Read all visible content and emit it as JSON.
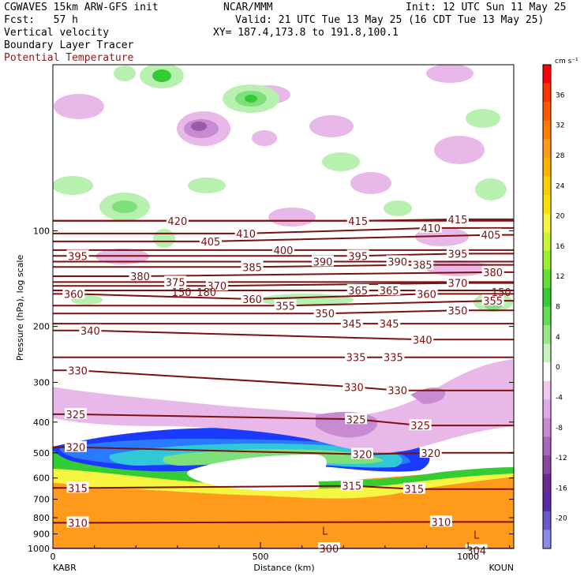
{
  "header": {
    "line1_left": "CGWAVES 15km ARW-GFS init",
    "line1_mid": "NCAR/MMM",
    "line1_right": "Init: 12 UTC Sun 11 May 25",
    "line2_left": "Fcst:   57 h",
    "line2_right": "Valid: 21 UTC Tue 13 May 25 (16 CDT Tue 13 May 25)",
    "line3_left": "Vertical velocity",
    "line3_right": "XY= 187.4,173.8 to 191.8,100.1",
    "line4_left": "Boundary Layer Tracer",
    "line5_left": "Potential Temperature"
  },
  "colors": {
    "theta": "#7a1010",
    "up_light": "#b8f0b0",
    "up_mid": "#7de07a",
    "up_strong": "#33cc33",
    "down_light": "#e8b8e8",
    "down_mid": "#c88ad0",
    "down_strong": "#9a5aa8",
    "tracer_orange": "#ff9a1a",
    "tracer_yellow": "#f5f542",
    "tracer_green": "#33cc33",
    "tracer_cyan": "#30c8d8",
    "tracer_blue": "#2a7aff",
    "tracer_dblue": "#1a3aff"
  },
  "chart_data": {
    "type": "heatmap",
    "xlabel": "Distance (km)",
    "ylabel": "Pressure (hPa), log scale",
    "x_ticks": [
      "0",
      "500",
      "1000"
    ],
    "x_tick_values": [
      0,
      500,
      1000
    ],
    "xlim": [
      0,
      1110
    ],
    "x_endpoints": [
      "KABR",
      "KOUN"
    ],
    "y_ticks": [
      "100",
      "200",
      "300",
      "400",
      "500",
      "600",
      "700",
      "800",
      "900",
      "1000"
    ],
    "y_tick_values": [
      100,
      200,
      300,
      400,
      500,
      600,
      700,
      800,
      900,
      1000
    ],
    "ylim": [
      1000,
      30
    ],
    "y_scale": "log",
    "colorbar": {
      "unit": "cm s⁻¹",
      "ticks": [
        "36",
        "32",
        "28",
        "24",
        "20",
        "16",
        "12",
        "8",
        "4",
        "0",
        "-4",
        "-8",
        "-12",
        "-16",
        "-20"
      ],
      "tick_values": [
        36,
        32,
        28,
        24,
        20,
        16,
        12,
        8,
        4,
        0,
        -4,
        -8,
        -12,
        -16,
        -20
      ],
      "colors": [
        "#ff0000",
        "#ff3300",
        "#ff5a00",
        "#ff7a00",
        "#ff9a1a",
        "#ffb000",
        "#ffcc00",
        "#ffe100",
        "#f5f542",
        "#ccf53a",
        "#99ee33",
        "#66e033",
        "#33cc33",
        "#66dd55",
        "#99e888",
        "#c8f2c0",
        "#ffffff",
        "#f0c8f0",
        "#e0a8e8",
        "#c88ad0",
        "#a868b8",
        "#8a48a0",
        "#6a2a90",
        "#5a2aa8",
        "#6a5ac8",
        "#8a8ae8"
      ]
    },
    "theta_contours": [
      {
        "label": "420",
        "x": 300,
        "p": 93
      },
      {
        "label": "415",
        "x": 735,
        "p": 93
      },
      {
        "label": "415",
        "x": 975,
        "p": 92
      },
      {
        "label": "410",
        "x": 465,
        "p": 102
      },
      {
        "label": "410",
        "x": 910,
        "p": 98
      },
      {
        "label": "405",
        "x": 380,
        "p": 108
      },
      {
        "label": "405",
        "x": 1055,
        "p": 103
      },
      {
        "label": "400",
        "x": 555,
        "p": 115
      },
      {
        "label": "395",
        "x": 60,
        "p": 120
      },
      {
        "label": "395",
        "x": 735,
        "p": 120
      },
      {
        "label": "395",
        "x": 975,
        "p": 118
      },
      {
        "label": "390",
        "x": 650,
        "p": 125
      },
      {
        "label": "390",
        "x": 830,
        "p": 125
      },
      {
        "label": "385",
        "x": 480,
        "p": 130
      },
      {
        "label": "385",
        "x": 890,
        "p": 128
      },
      {
        "label": "380",
        "x": 210,
        "p": 139
      },
      {
        "label": "380",
        "x": 1060,
        "p": 135
      },
      {
        "label": "375",
        "x": 295,
        "p": 145
      },
      {
        "label": "370",
        "x": 395,
        "p": 149
      },
      {
        "label": "370",
        "x": 975,
        "p": 146
      },
      {
        "label": "365",
        "x": 735,
        "p": 154
      },
      {
        "label": "365",
        "x": 810,
        "p": 154
      },
      {
        "label": "360",
        "x": 50,
        "p": 158
      },
      {
        "label": "360",
        "x": 480,
        "p": 164
      },
      {
        "label": "360",
        "x": 900,
        "p": 158
      },
      {
        "label": "355",
        "x": 560,
        "p": 172
      },
      {
        "label": "355",
        "x": 1060,
        "p": 166
      },
      {
        "label": "350",
        "x": 655,
        "p": 182
      },
      {
        "label": "350",
        "x": 975,
        "p": 178
      },
      {
        "label": "345",
        "x": 720,
        "p": 196
      },
      {
        "label": "345",
        "x": 810,
        "p": 196
      },
      {
        "label": "340",
        "x": 90,
        "p": 206
      },
      {
        "label": "340",
        "x": 890,
        "p": 220
      },
      {
        "label": "335",
        "x": 730,
        "p": 250
      },
      {
        "label": "335",
        "x": 820,
        "p": 250
      },
      {
        "label": "330",
        "x": 60,
        "p": 275
      },
      {
        "label": "330",
        "x": 725,
        "p": 310
      },
      {
        "label": "330",
        "x": 830,
        "p": 318
      },
      {
        "label": "325",
        "x": 55,
        "p": 378
      },
      {
        "label": "325",
        "x": 730,
        "p": 392
      },
      {
        "label": "325",
        "x": 885,
        "p": 410
      },
      {
        "label": "320",
        "x": 55,
        "p": 480
      },
      {
        "label": "320",
        "x": 745,
        "p": 505
      },
      {
        "label": "320",
        "x": 910,
        "p": 500
      },
      {
        "label": "315",
        "x": 60,
        "p": 645
      },
      {
        "label": "315",
        "x": 720,
        "p": 635
      },
      {
        "label": "315",
        "x": 870,
        "p": 650
      },
      {
        "label": "310",
        "x": 60,
        "p": 830
      },
      {
        "label": "310",
        "x": 935,
        "p": 825
      },
      {
        "label": "300",
        "x": 665,
        "p": 1000
      },
      {
        "label": "304",
        "x": 1020,
        "p": 1015
      }
    ],
    "markers": [
      {
        "label": "L",
        "x": 655,
        "p": 880
      },
      {
        "label": "L",
        "x": 1020,
        "p": 905
      },
      {
        "label": "150",
        "x": 310,
        "p": 156
      },
      {
        "label": "180",
        "x": 370,
        "p": 156
      },
      {
        "label": "150",
        "x": 1080,
        "p": 156
      }
    ]
  }
}
